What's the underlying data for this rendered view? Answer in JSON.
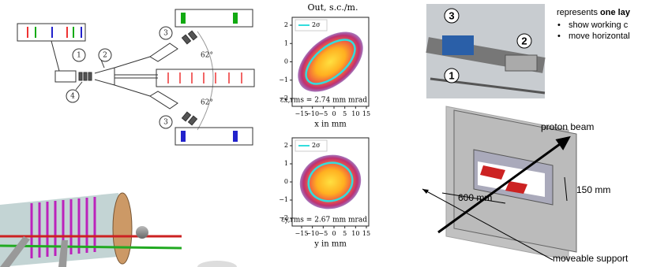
{
  "schematic": {
    "labels": [
      "1",
      "2",
      "3",
      "4",
      "3"
    ],
    "angles": [
      "62°",
      "62°"
    ]
  },
  "plots": [
    {
      "title": "Out, s.c./m.",
      "legend": "2σ",
      "annotation": "εx,rms = 2.74 mm mrad",
      "xlabel": "x in mm",
      "xticks": [
        "−15",
        "−10",
        "−5",
        "0",
        "5",
        "10",
        "15"
      ],
      "yticks": [
        "2",
        "1",
        "0",
        "−1",
        "−2"
      ]
    },
    {
      "legend": "2σ",
      "annotation": "εy,rms = 2.67 mm mrad",
      "xlabel": "y in mm",
      "xticks": [
        "−15",
        "−10",
        "−5",
        "0",
        "5",
        "10",
        "15"
      ],
      "yticks": [
        "2",
        "1",
        "0",
        "−1",
        "−2"
      ]
    }
  ],
  "photo": {
    "labels": [
      "3",
      "2",
      "1"
    ]
  },
  "notes": {
    "heading": "represents ",
    "heading_bold": "one lay",
    "bullets": [
      "show working c",
      "move horizontal"
    ]
  },
  "detector": {
    "labels": [
      "proton beam",
      "600 mm",
      "150 mm",
      "moveable support"
    ]
  }
}
